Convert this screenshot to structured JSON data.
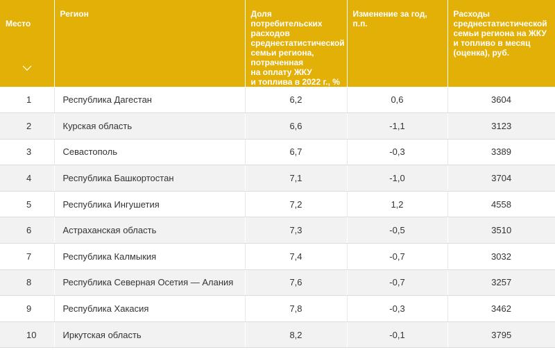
{
  "header": {
    "rank": "Место",
    "region": "Регион",
    "share": "Доля потребительских\nрасходов\nсреднестатистической\nсемьи региона,\nпотраченная\nна оплату ЖКУ\nи топлива в 2022 г., %",
    "change": "Изменение за год,\nп.п.",
    "spending": "Расходы\nсреднестатистической\nсемьи региона на ЖКУ\nи топливо в месяц\n(оценка), руб.",
    "sort_icon": "chevron-down-icon"
  },
  "rows": [
    {
      "rank": "1",
      "region": "Республика Дагестан",
      "share": "6,2",
      "change": "0,6",
      "spending": "3604"
    },
    {
      "rank": "2",
      "region": "Курская область",
      "share": "6,6",
      "change": "-1,1",
      "spending": "3123"
    },
    {
      "rank": "3",
      "region": "Севастополь",
      "share": "6,7",
      "change": "-0,3",
      "spending": "3389"
    },
    {
      "rank": "4",
      "region": "Республика Башкортостан",
      "share": "7,1",
      "change": "-1,0",
      "spending": "3704"
    },
    {
      "rank": "5",
      "region": "Республика Ингушетия",
      "share": "7,2",
      "change": "1,2",
      "spending": "4558"
    },
    {
      "rank": "6",
      "region": "Астраханская область",
      "share": "7,3",
      "change": "-0,5",
      "spending": "3510"
    },
    {
      "rank": "7",
      "region": "Республика Калмыкия",
      "share": "7,4",
      "change": "-0,7",
      "spending": "3032"
    },
    {
      "rank": "8",
      "region": "Республика Северная Осетия — Алания",
      "share": "7,6",
      "change": "-0,7",
      "spending": "3257"
    },
    {
      "rank": "9",
      "region": "Республика Хакасия",
      "share": "7,8",
      "change": "-0,3",
      "spending": "3462"
    },
    {
      "rank": "10",
      "region": "Иркутская область",
      "share": "8,2",
      "change": "-0,1",
      "spending": "3795"
    }
  ],
  "colors": {
    "header_bg": "#e2b007",
    "row_alt": "#f2f2f2"
  }
}
